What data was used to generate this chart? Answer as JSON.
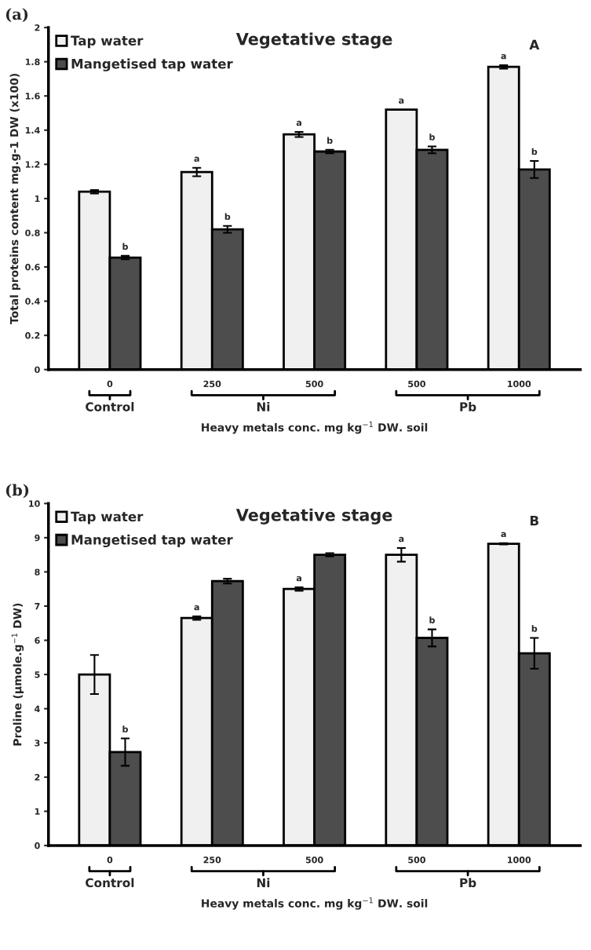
{
  "chart_data": [
    {
      "type": "bar",
      "title": "Vegetative stage",
      "xlabel": "Heavy metals conc. mg kg$^{−1}$ DW. soil",
      "ylabel": "Total proteins content mg.g-1 DW (x100)",
      "categories": [
        "0",
        "250",
        "500",
        "500",
        "1000"
      ],
      "series": [
        {
          "name": "Tap water",
          "color": "#f0f0f0",
          "values": [
            1.04,
            1.155,
            1.375,
            1.52,
            1.77
          ],
          "errors": [
            0.01,
            0.025,
            0.015,
            null,
            0.01
          ],
          "value_labels": [
            null,
            "a",
            "a",
            "a",
            "a"
          ]
        },
        {
          "name": "Mangetised tap water",
          "color": "#4d4d4d",
          "values": [
            0.655,
            0.82,
            1.275,
            1.285,
            1.17
          ],
          "errors": [
            0.01,
            0.02,
            0.01,
            0.02,
            0.05
          ],
          "value_labels": [
            "b",
            "b",
            "b",
            "b",
            "b"
          ]
        }
      ],
      "ylim": [
        0,
        2
      ],
      "yticks": [
        0,
        0.2,
        0.4,
        0.6,
        0.8,
        1,
        1.2,
        1.4,
        1.6,
        1.8,
        2
      ],
      "legend": "top left",
      "grid": false,
      "annotations": [
        "Control",
        "Ni",
        "Pb",
        "A",
        "(a)"
      ]
    },
    {
      "type": "bar",
      "title": "Vegetative stage",
      "xlabel": "Heavy metals conc. mg kg$^{−1}$ DW. soil",
      "ylabel": "Proline (µmole.g$^{−1}$ DW)",
      "categories": [
        "0",
        "250",
        "500",
        "500",
        "1000"
      ],
      "series": [
        {
          "name": "Tap water",
          "color": "#f0f0f0",
          "values": [
            5.0,
            6.65,
            7.5,
            8.5,
            8.82
          ],
          "errors": [
            0.57,
            0.05,
            0.05,
            0.2,
            0.02
          ],
          "value_labels": [
            null,
            "a",
            "a",
            "a",
            "a"
          ]
        },
        {
          "name": "Mangetised tap water",
          "color": "#4d4d4d",
          "values": [
            2.73,
            7.73,
            8.5,
            6.07,
            5.62
          ],
          "errors": [
            0.4,
            0.07,
            0.05,
            0.25,
            0.45
          ],
          "value_labels": [
            "b",
            null,
            null,
            "b",
            "b"
          ]
        }
      ],
      "ylim": [
        0,
        10
      ],
      "yticks": [
        0,
        1,
        2,
        3,
        4,
        5,
        6,
        7,
        8,
        9,
        10
      ],
      "legend": "top left",
      "grid": false,
      "annotations": [
        "Control",
        "Ni",
        "Pb",
        "B",
        "(b)"
      ]
    }
  ]
}
